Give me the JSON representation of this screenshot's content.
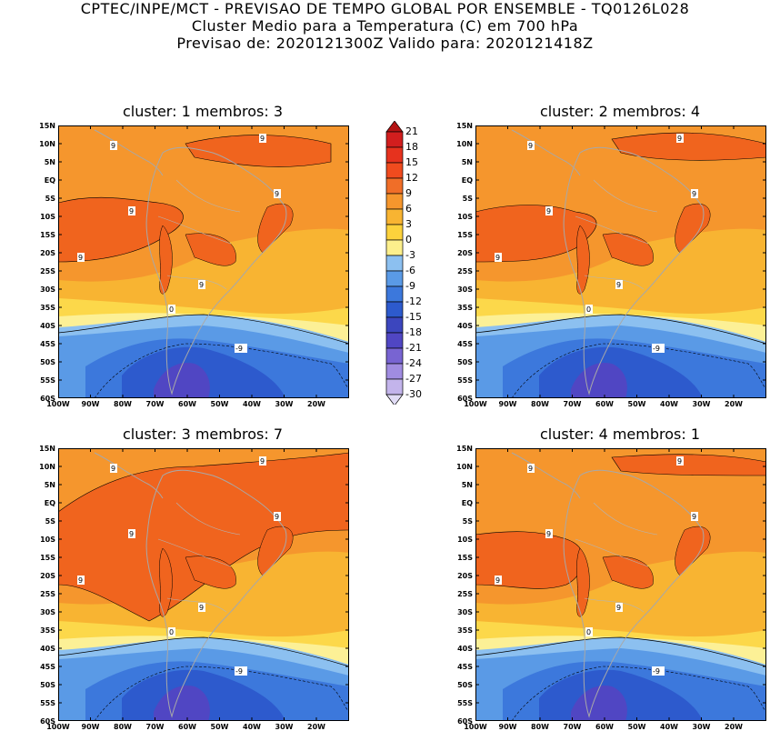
{
  "header": {
    "line1": "CPTEC/INPE/MCT - PREVISAO DE TEMPO GLOBAL POR ENSEMBLE - TQ0126L028",
    "line2": "Cluster Medio para a Temperatura (C) em 700 hPa",
    "line3": "Previsao de: 2020121300Z   Valido para: 2020121418Z"
  },
  "panels": [
    {
      "title": "cluster: 1   membros: 3",
      "labels": {
        "nine": "9",
        "zero": "0",
        "minus9": "-9"
      }
    },
    {
      "title": "cluster: 2   membros: 4",
      "labels": {
        "nine": "9",
        "zero": "0",
        "minus9": "-9"
      }
    },
    {
      "title": "cluster: 3   membros: 7",
      "labels": {
        "nine": "9",
        "zero": "0",
        "minus9": "-9"
      }
    },
    {
      "title": "cluster: 4   membros: 1",
      "labels": {
        "nine": "9",
        "zero": "0",
        "minus9": "-9"
      }
    }
  ],
  "map": {
    "lat_labels": [
      "15N",
      "10N",
      "5N",
      "EQ",
      "5S",
      "10S",
      "15S",
      "20S",
      "25S",
      "30S",
      "35S",
      "40S",
      "45S",
      "50S",
      "55S",
      "60S"
    ],
    "lon_labels": [
      "100W",
      "90W",
      "80W",
      "70W",
      "60W",
      "50W",
      "40W",
      "30W",
      "20W"
    ],
    "lat_range": [
      15,
      -60
    ],
    "lon_range": [
      -100,
      -10
    ]
  },
  "colorbar": {
    "labels": [
      "21",
      "18",
      "15",
      "12",
      "9",
      "6",
      "3",
      "0",
      "-3",
      "-6",
      "-9",
      "-12",
      "-15",
      "-18",
      "-21",
      "-24",
      "-27",
      "-30"
    ],
    "colors": [
      "#b41414",
      "#d21e1e",
      "#e6321e",
      "#f04b1e",
      "#f06e28",
      "#f5962d",
      "#f8b432",
      "#fcd23c",
      "#fcef8c",
      "#8cc0f0",
      "#5a9ae6",
      "#3c78dc",
      "#2d5acd",
      "#3c46be",
      "#5046c3",
      "#7864d2",
      "#a08ce1",
      "#c3b4eb",
      "#e1dcf5"
    ]
  },
  "legend_colors": {
    "orange_dark": "#f0641e",
    "orange": "#f5962d",
    "orange_light": "#f8b432",
    "yellow": "#fcd84a",
    "light_yellow": "#fcf096",
    "blue_light": "#8cc0f0",
    "blue": "#5a9ae6",
    "blue_mid": "#3c78dc",
    "blue_dark": "#2d5acd",
    "purple": "#5046c3"
  }
}
